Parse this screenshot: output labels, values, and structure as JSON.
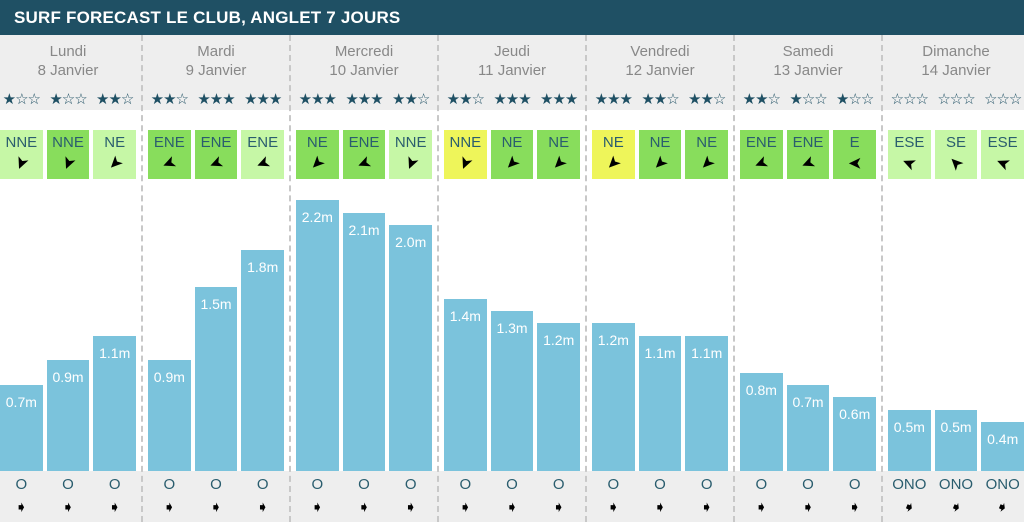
{
  "title": "SURF FORECAST LE CLUB, ANGLET 7 JOURS",
  "colors": {
    "header": "#1f5064",
    "bar": "#7bc3dc",
    "wind_light": "#c6f7a6",
    "wind_medium": "#88dd5c",
    "wind_yellow": "#eef55a"
  },
  "days": [
    {
      "name": "Lundi",
      "date": "8 Janvier",
      "slots": [
        {
          "stars": 1,
          "wind": "NNE",
          "wind_color": "light",
          "height": 0.7,
          "height_label": "0.7m",
          "swell": "O"
        },
        {
          "stars": 1,
          "wind": "NNE",
          "wind_color": "medium",
          "height": 0.9,
          "height_label": "0.9m",
          "swell": "O"
        },
        {
          "stars": 2,
          "wind": "NE",
          "wind_color": "light",
          "height": 1.1,
          "height_label": "1.1m",
          "swell": "O"
        }
      ]
    },
    {
      "name": "Mardi",
      "date": "9 Janvier",
      "slots": [
        {
          "stars": 2,
          "wind": "ENE",
          "wind_color": "medium",
          "height": 0.9,
          "height_label": "0.9m",
          "swell": "O"
        },
        {
          "stars": 3,
          "wind": "ENE",
          "wind_color": "medium",
          "height": 1.5,
          "height_label": "1.5m",
          "swell": "O"
        },
        {
          "stars": 3,
          "wind": "ENE",
          "wind_color": "light",
          "height": 1.8,
          "height_label": "1.8m",
          "swell": "O"
        }
      ]
    },
    {
      "name": "Mercredi",
      "date": "10 Janvier",
      "slots": [
        {
          "stars": 3,
          "wind": "NE",
          "wind_color": "medium",
          "height": 2.2,
          "height_label": "2.2m",
          "swell": "O"
        },
        {
          "stars": 3,
          "wind": "ENE",
          "wind_color": "medium",
          "height": 2.1,
          "height_label": "2.1m",
          "swell": "O"
        },
        {
          "stars": 2,
          "wind": "NNE",
          "wind_color": "light",
          "height": 2.0,
          "height_label": "2.0m",
          "swell": "O"
        }
      ]
    },
    {
      "name": "Jeudi",
      "date": "11 Janvier",
      "slots": [
        {
          "stars": 2,
          "wind": "NNE",
          "wind_color": "yellow",
          "height": 1.4,
          "height_label": "1.4m",
          "swell": "O"
        },
        {
          "stars": 3,
          "wind": "NE",
          "wind_color": "medium",
          "height": 1.3,
          "height_label": "1.3m",
          "swell": "O"
        },
        {
          "stars": 3,
          "wind": "NE",
          "wind_color": "medium",
          "height": 1.2,
          "height_label": "1.2m",
          "swell": "O"
        }
      ]
    },
    {
      "name": "Vendredi",
      "date": "12 Janvier",
      "slots": [
        {
          "stars": 3,
          "wind": "NE",
          "wind_color": "yellow",
          "height": 1.2,
          "height_label": "1.2m",
          "swell": "O"
        },
        {
          "stars": 2,
          "wind": "NE",
          "wind_color": "medium",
          "height": 1.1,
          "height_label": "1.1m",
          "swell": "O"
        },
        {
          "stars": 2,
          "wind": "NE",
          "wind_color": "medium",
          "height": 1.1,
          "height_label": "1.1m",
          "swell": "O"
        }
      ]
    },
    {
      "name": "Samedi",
      "date": "13 Janvier",
      "slots": [
        {
          "stars": 2,
          "wind": "ENE",
          "wind_color": "medium",
          "height": 0.8,
          "height_label": "0.8m",
          "swell": "O"
        },
        {
          "stars": 1,
          "wind": "ENE",
          "wind_color": "medium",
          "height": 0.7,
          "height_label": "0.7m",
          "swell": "O"
        },
        {
          "stars": 1,
          "wind": "E",
          "wind_color": "medium",
          "height": 0.6,
          "height_label": "0.6m",
          "swell": "O"
        }
      ]
    },
    {
      "name": "Dimanche",
      "date": "14 Janvier",
      "slots": [
        {
          "stars": 0,
          "wind": "ESE",
          "wind_color": "light",
          "height": 0.5,
          "height_label": "0.5m",
          "swell": "ONO"
        },
        {
          "stars": 0,
          "wind": "SE",
          "wind_color": "light",
          "height": 0.5,
          "height_label": "0.5m",
          "swell": "ONO"
        },
        {
          "stars": 0,
          "wind": "ESE",
          "wind_color": "light",
          "height": 0.4,
          "height_label": "0.4m",
          "swell": "ONO"
        }
      ]
    }
  ]
}
